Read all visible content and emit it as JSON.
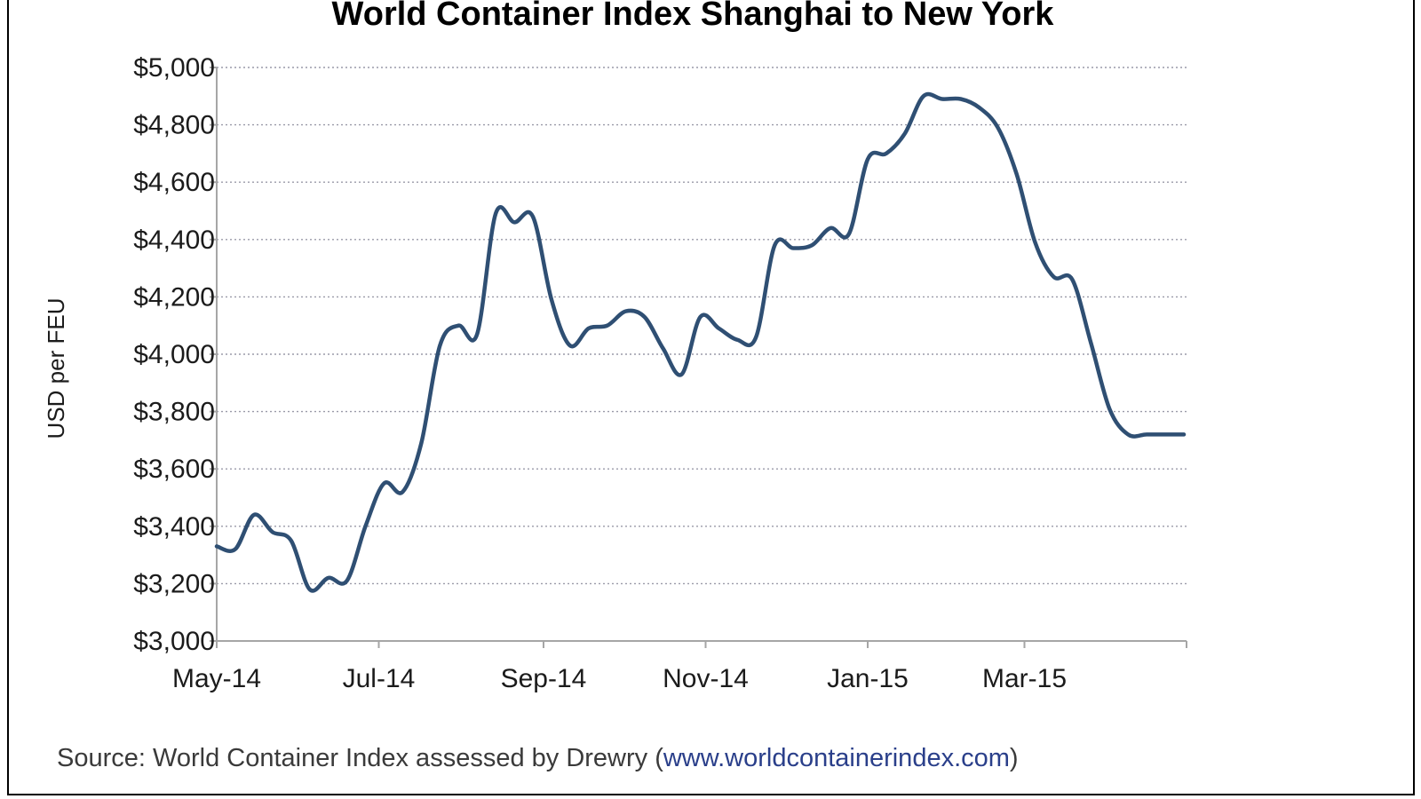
{
  "chart_data": {
    "type": "line",
    "title": "World Container Index Shanghai to New York",
    "xlabel": "",
    "ylabel": "USD per FEU",
    "ylim": [
      3000,
      5000
    ],
    "y_ticks": [
      3000,
      3200,
      3400,
      3600,
      3800,
      4000,
      4200,
      4400,
      4600,
      4800,
      5000
    ],
    "y_tick_labels": [
      "$3,000",
      "$3,200",
      "$3,400",
      "$3,600",
      "$3,800",
      "$4,000",
      "$4,200",
      "$4,400",
      "$4,600",
      "$4,800",
      "$5,000"
    ],
    "x_tick_labels": [
      "May-14",
      "Jul-14",
      "Sep-14",
      "Nov-14",
      "Jan-15",
      "Mar-15"
    ],
    "grid": true,
    "series": [
      {
        "name": "",
        "color": "#2f4f73",
        "x": [
          "2014-05-01",
          "2014-05-08",
          "2014-05-15",
          "2014-05-22",
          "2014-05-29",
          "2014-06-05",
          "2014-06-12",
          "2014-06-19",
          "2014-06-26",
          "2014-07-03",
          "2014-07-10",
          "2014-07-17",
          "2014-07-24",
          "2014-07-31",
          "2014-08-07",
          "2014-08-14",
          "2014-08-21",
          "2014-08-28",
          "2014-09-04",
          "2014-09-11",
          "2014-09-18",
          "2014-09-25",
          "2014-10-02",
          "2014-10-09",
          "2014-10-16",
          "2014-10-23",
          "2014-10-30",
          "2014-11-06",
          "2014-11-13",
          "2014-11-20",
          "2014-11-27",
          "2014-12-04",
          "2014-12-11",
          "2014-12-18",
          "2014-12-25",
          "2015-01-01",
          "2015-01-08",
          "2015-01-15",
          "2015-01-22",
          "2015-01-29",
          "2015-02-05",
          "2015-02-12",
          "2015-02-19",
          "2015-02-26",
          "2015-03-05",
          "2015-03-12",
          "2015-03-19",
          "2015-03-26",
          "2015-04-02",
          "2015-04-09",
          "2015-04-16",
          "2015-04-23",
          "2015-04-30"
        ],
        "values": [
          3330,
          3320,
          3440,
          3380,
          3350,
          3180,
          3220,
          3210,
          3400,
          3550,
          3520,
          3690,
          4030,
          4100,
          4070,
          4490,
          4460,
          4480,
          4190,
          4030,
          4090,
          4100,
          4150,
          4130,
          4020,
          3930,
          4130,
          4090,
          4050,
          4060,
          4380,
          4370,
          4380,
          4440,
          4420,
          4680,
          4700,
          4770,
          4900,
          4890,
          4890,
          4860,
          4790,
          4630,
          4390,
          4270,
          4260,
          4040,
          3810,
          3720,
          3720,
          3720,
          3720
        ]
      }
    ]
  },
  "source": {
    "text": "Source: World Container Index assessed by Drewry (",
    "url": "www.worldcontainerindex.com",
    "close": ")"
  }
}
